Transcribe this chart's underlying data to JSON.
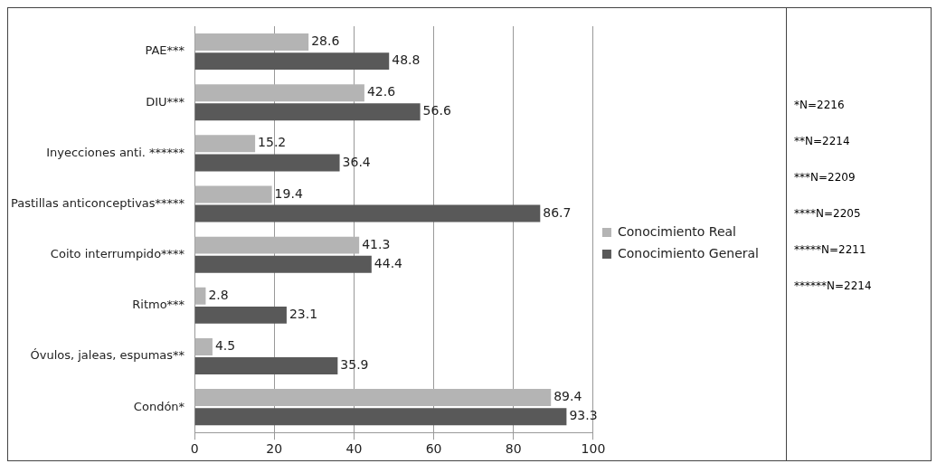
{
  "chart_data": {
    "type": "bar",
    "orientation": "horizontal",
    "categories": [
      "PAE***",
      "DIU***",
      "Inyecciones anti. ******",
      "Pastillas anticonceptivas*****",
      "Coito interrumpido****",
      "Ritmo***",
      "Óvulos, jaleas, espumas**",
      "Condón*"
    ],
    "series": [
      {
        "name": "Conocimiento Real",
        "color": "#b4b4b4",
        "values": [
          28.6,
          42.6,
          15.2,
          19.4,
          41.3,
          2.8,
          4.5,
          89.4
        ]
      },
      {
        "name": "Conocimiento General",
        "color": "#595959",
        "values": [
          48.8,
          56.6,
          36.4,
          86.7,
          44.4,
          23.1,
          35.9,
          93.3
        ]
      }
    ],
    "xlim": [
      0,
      100
    ],
    "xticks": [
      0,
      20,
      40,
      60,
      80,
      100
    ],
    "grid": "x",
    "legend": "right",
    "data_labels": true,
    "annotations": [
      "*N=2216",
      "**N=2214",
      "***N=2209",
      "****N=2205",
      "*****N=2211",
      "******N=2214"
    ]
  }
}
